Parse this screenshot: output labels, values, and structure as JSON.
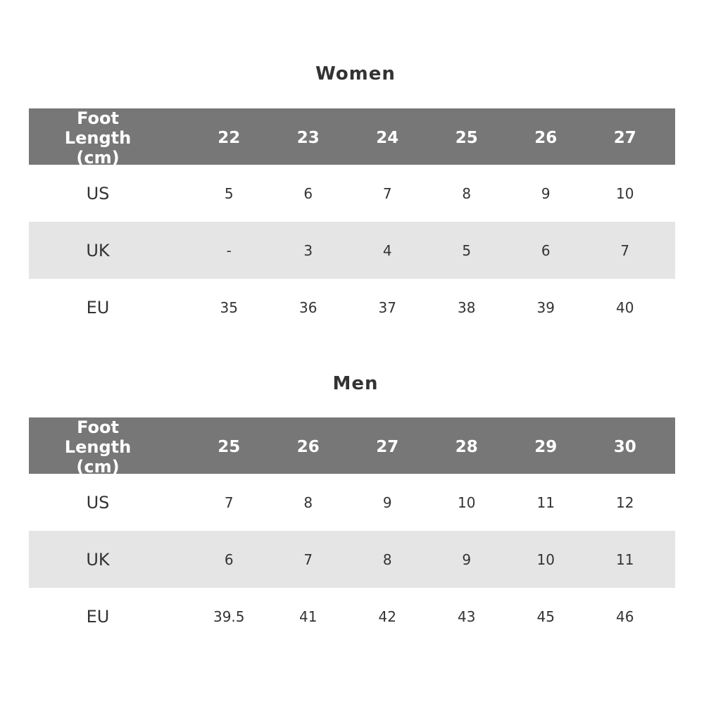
{
  "tables": [
    {
      "title": "Women",
      "header_label": "Foot Length (cm)",
      "sizes": [
        "22",
        "23",
        "24",
        "25",
        "26",
        "27"
      ],
      "rows": [
        {
          "label": "US",
          "values": [
            "5",
            "6",
            "7",
            "8",
            "9",
            "10"
          ]
        },
        {
          "label": "UK",
          "values": [
            "-",
            "3",
            "4",
            "5",
            "6",
            "7"
          ]
        },
        {
          "label": "EU",
          "values": [
            "35",
            "36",
            "37",
            "38",
            "39",
            "40"
          ]
        }
      ]
    },
    {
      "title": "Men",
      "header_label": "Foot Length (cm)",
      "sizes": [
        "25",
        "26",
        "27",
        "28",
        "29",
        "30"
      ],
      "rows": [
        {
          "label": "US",
          "values": [
            "7",
            "8",
            "9",
            "10",
            "11",
            "12"
          ]
        },
        {
          "label": "UK",
          "values": [
            "6",
            "7",
            "8",
            "9",
            "10",
            "11"
          ]
        },
        {
          "label": "EU",
          "values": [
            "39.5",
            "41",
            "42",
            "43",
            "45",
            "46"
          ]
        }
      ]
    }
  ],
  "colors": {
    "header_bg": "#777777",
    "alt_row_bg": "#e5e5e5",
    "text": "#333333"
  }
}
